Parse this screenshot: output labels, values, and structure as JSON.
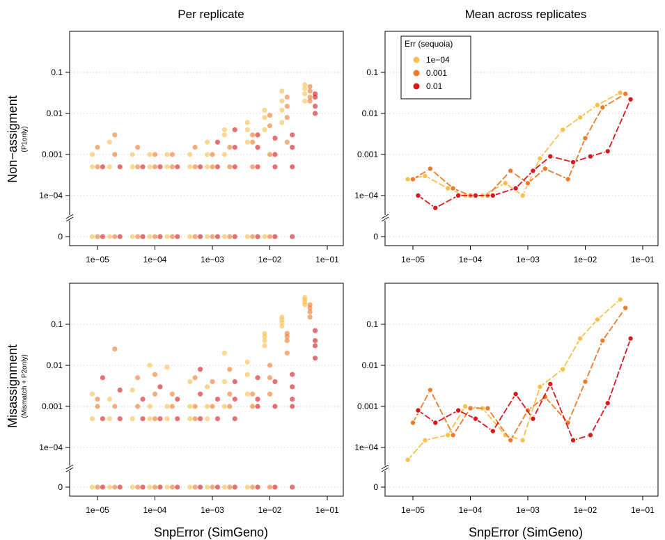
{
  "colors": {
    "1e-04": "#F9C04D",
    "0.001": "#EE7B2B",
    "0.01": "#D7191C"
  },
  "chart_data": {
    "type": "scatter",
    "column_titles": [
      "Per replicate",
      "Mean across replicates"
    ],
    "row_labels": [
      {
        "main": "Non−assigment",
        "sub": "(P1only)"
      },
      {
        "main": "Misassignment",
        "sub": "(Mismatch + P2only)"
      }
    ],
    "xlabel": "SnpError (SimGeno)",
    "xscale": "log",
    "xlim": [
      6e-06,
      0.1
    ],
    "xticks": [
      "1e−05",
      "1e−04",
      "1e−03",
      "1e−02",
      "1e−01"
    ],
    "yscale": "log with zero break",
    "yticks": [
      "0",
      "1e−04",
      "0.001",
      "0.01",
      "0.1"
    ],
    "legend": {
      "title": "Err (sequoia)",
      "position": "top-left",
      "entries": [
        "1e−04",
        "0.001",
        "0.01"
      ]
    },
    "x_snp_error": [
      1e-05,
      2e-05,
      5e-05,
      0.0001,
      0.0002,
      0.0005,
      0.001,
      0.002,
      0.005,
      0.01,
      0.02,
      0.05
    ],
    "mean_nonassign": [
      {
        "name": "1e−04",
        "values": [
          0.00025,
          0.0003,
          0.00015,
          0.0001,
          0.0001,
          0.0002,
          0.0001,
          0.0008,
          0.004,
          0.008,
          0.016,
          0.032
        ]
      },
      {
        "name": "0.001",
        "values": [
          0.00025,
          0.00045,
          0.00015,
          0.0001,
          0.0001,
          0.0004,
          0.0002,
          0.00045,
          0.00025,
          0.0025,
          0.014,
          0.03
        ]
      },
      {
        "name": "0.01",
        "values": [
          0.0001,
          5e-05,
          0.0001,
          0.0001,
          0.0001,
          0.00015,
          0.0004,
          0.0009,
          0.00065,
          0.0009,
          0.0012,
          0.022
        ]
      }
    ],
    "mean_misassign": [
      {
        "name": "1e−04",
        "values": [
          5e-05,
          0.00015,
          0.0002,
          0.001,
          0.0009,
          0.0002,
          0.00015,
          0.003,
          0.008,
          0.045,
          0.13,
          0.4
        ]
      },
      {
        "name": "0.001",
        "values": [
          0.0004,
          0.0025,
          0.0002,
          0.0009,
          0.0009,
          0.00015,
          0.0008,
          0.0017,
          0.0004,
          0.004,
          0.04,
          0.25
        ]
      },
      {
        "name": "0.01",
        "values": [
          0.0008,
          0.0004,
          0.0008,
          0.0005,
          0.00025,
          0.002,
          0.0005,
          0.0035,
          0.00015,
          0.0002,
          0.0012,
          0.045
        ]
      }
    ],
    "replicate_nonassign": [
      {
        "name": "1e−04",
        "values": [
          [
            0,
            0.0005,
            0.001
          ],
          [
            0,
            0.0005,
            0.002
          ],
          [
            0,
            0.0005,
            0.001
          ],
          [
            0,
            0.0005,
            0.001
          ],
          [
            0,
            0.0005,
            0.001
          ],
          [
            0,
            0.0005,
            0.001
          ],
          [
            0,
            0.0005,
            0.001,
            0.002
          ],
          [
            0,
            0.001,
            0.003,
            0.004
          ],
          [
            0,
            0.002,
            0.004,
            0.006
          ],
          [
            0,
            0.004,
            0.008,
            0.012
          ],
          [
            0.006,
            0.012,
            0.02,
            0.035
          ],
          [
            0.02,
            0.03,
            0.04,
            0.05
          ]
        ]
      },
      {
        "name": "0.001",
        "values": [
          [
            0,
            0.0005,
            0.0015
          ],
          [
            0,
            0.001,
            0.003
          ],
          [
            0,
            0.0005,
            0.0015
          ],
          [
            0,
            0.0005,
            0.001
          ],
          [
            0,
            0.0005,
            0.001
          ],
          [
            0,
            0.0005,
            0.0015
          ],
          [
            0,
            0.0005,
            0.001
          ],
          [
            0,
            0.0005,
            0.0015
          ],
          [
            0,
            0.0005,
            0.002,
            0.003
          ],
          [
            0,
            0.001,
            0.005,
            0.009
          ],
          [
            0.002,
            0.008,
            0.015,
            0.025
          ],
          [
            0.02,
            0.025,
            0.035,
            0.045
          ]
        ]
      },
      {
        "name": "0.01",
        "values": [
          [
            0,
            0.0005
          ],
          [
            0,
            0.0005
          ],
          [
            0,
            0.0005
          ],
          [
            0,
            0.0005
          ],
          [
            0,
            0.0005
          ],
          [
            0,
            0.0005
          ],
          [
            0,
            0.0005,
            0.002
          ],
          [
            0,
            0.0005,
            0.0015,
            0.004
          ],
          [
            0,
            0.0005,
            0.0015,
            0.003
          ],
          [
            0,
            0.0005,
            0.001,
            0.0025
          ],
          [
            0,
            0.0005,
            0.0015,
            0.003
          ],
          [
            0.01,
            0.015,
            0.025,
            0.03
          ]
        ]
      }
    ],
    "replicate_misassign": [
      {
        "name": "1e−04",
        "values": [
          [
            0,
            0.0005,
            0.002
          ],
          [
            0,
            0.0005,
            0.0015
          ],
          [
            0,
            0.0005,
            0.0025
          ],
          [
            0,
            0.0005,
            0.001,
            0.01
          ],
          [
            0,
            0.0005,
            0.001,
            0.009
          ],
          [
            0,
            0.0005,
            0.001,
            0.004
          ],
          [
            0,
            0.0005,
            0.001,
            0.003
          ],
          [
            0,
            0.001,
            0.004,
            0.02
          ],
          [
            0,
            0.002,
            0.006,
            0.012
          ],
          [
            0.03,
            0.04,
            0.05,
            0.06
          ],
          [
            0.09,
            0.11,
            0.13,
            0.15
          ],
          [
            0.3,
            0.35,
            0.4,
            0.45
          ]
        ]
      },
      {
        "name": "0.001",
        "values": [
          [
            0,
            0.001,
            0.0015
          ],
          [
            0,
            0.001,
            0.025
          ],
          [
            0,
            0.001,
            0.005
          ],
          [
            0,
            0.0005,
            0.002,
            0.006
          ],
          [
            0,
            0.001,
            0.002
          ],
          [
            0,
            0.0005,
            0.001,
            0.005
          ],
          [
            0,
            0.001,
            0.004
          ],
          [
            0,
            0.001,
            0.002,
            0.008
          ],
          [
            0,
            0.001,
            0.002
          ],
          [
            0,
            0.002,
            0.005,
            0.01
          ],
          [
            0.02,
            0.04,
            0.05,
            0.06
          ],
          [
            0.15,
            0.2,
            0.25,
            0.3
          ]
        ]
      },
      {
        "name": "0.01",
        "values": [
          [
            0,
            0.0005,
            0.005
          ],
          [
            0,
            0.0005,
            0.0025
          ],
          [
            0,
            0.0005,
            0.0015
          ],
          [
            0,
            0.0005,
            0.003
          ],
          [
            0,
            0.0005,
            0.0015
          ],
          [
            0,
            0.0005,
            0.002,
            0.008
          ],
          [
            0,
            0.0005,
            0.0015
          ],
          [
            0,
            0.0005,
            0.0015,
            0.004
          ],
          [
            0,
            0.001,
            0.0015,
            0.005
          ],
          [
            0,
            0.001,
            0.004
          ],
          [
            0,
            0.001,
            0.0015,
            0.003,
            0.006
          ],
          [
            0.015,
            0.03,
            0.04,
            0.07
          ]
        ]
      }
    ]
  }
}
